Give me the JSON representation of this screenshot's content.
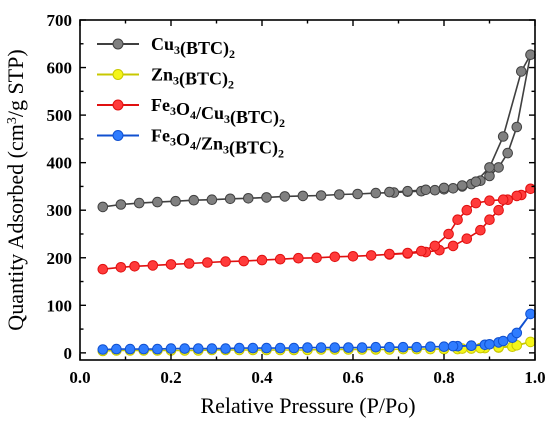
{
  "chart_data": {
    "type": "scatter",
    "xlabel": "Relative Pressure (P/Po)",
    "ylabel_main": "Quantity Adsorbed (cm",
    "ylabel_sup": "3",
    "ylabel_tail": "/g STP)",
    "xlim": [
      0.0,
      1.0
    ],
    "ylim": [
      -15,
      700
    ],
    "xticks": [
      "0.0",
      "0.2",
      "0.4",
      "0.6",
      "0.8",
      "1.0"
    ],
    "yticks": [
      "0",
      "100",
      "200",
      "300",
      "400",
      "500",
      "600",
      "700"
    ],
    "legend_position": "top-left",
    "series": [
      {
        "name": "Cu3(BTC)2",
        "legend_parts": [
          [
            "Cu",
            ""
          ],
          [
            "3",
            "sub"
          ],
          [
            "(BTC)",
            ""
          ],
          [
            "2",
            "sub"
          ]
        ],
        "color": "#404040",
        "fill": "#808080",
        "adsorption": [
          [
            0.05,
            307
          ],
          [
            0.09,
            312
          ],
          [
            0.13,
            315
          ],
          [
            0.17,
            317
          ],
          [
            0.21,
            319
          ],
          [
            0.25,
            321
          ],
          [
            0.29,
            322
          ],
          [
            0.33,
            324
          ],
          [
            0.37,
            325
          ],
          [
            0.41,
            327
          ],
          [
            0.45,
            329
          ],
          [
            0.49,
            330
          ],
          [
            0.53,
            331
          ],
          [
            0.57,
            333
          ],
          [
            0.61,
            334
          ],
          [
            0.65,
            336
          ],
          [
            0.69,
            337
          ],
          [
            0.72,
            339
          ],
          [
            0.75,
            340
          ],
          [
            0.78,
            342
          ],
          [
            0.8,
            344
          ],
          [
            0.82,
            346
          ],
          [
            0.84,
            350
          ],
          [
            0.86,
            355
          ],
          [
            0.88,
            362
          ],
          [
            0.9,
            372
          ],
          [
            0.92,
            390
          ],
          [
            0.94,
            420
          ],
          [
            0.96,
            475
          ],
          [
            0.99,
            627
          ]
        ],
        "desorption": [
          [
            0.99,
            627
          ],
          [
            0.97,
            592
          ],
          [
            0.93,
            455
          ],
          [
            0.9,
            390
          ],
          [
            0.87,
            360
          ],
          [
            0.84,
            352
          ],
          [
            0.8,
            347
          ],
          [
            0.76,
            343
          ],
          [
            0.72,
            340
          ],
          [
            0.68,
            338
          ]
        ]
      },
      {
        "name": "Zn3(BTC)2",
        "legend_parts": [
          [
            "Zn",
            ""
          ],
          [
            "3",
            "sub"
          ],
          [
            "(BTC)",
            ""
          ],
          [
            "2",
            "sub"
          ]
        ],
        "color": "#c8c800",
        "fill": "#f5f51a",
        "adsorption": [
          [
            0.05,
            4
          ],
          [
            0.08,
            5
          ],
          [
            0.11,
            5
          ],
          [
            0.14,
            5
          ],
          [
            0.17,
            5
          ],
          [
            0.2,
            5
          ],
          [
            0.23,
            5
          ],
          [
            0.26,
            5
          ],
          [
            0.29,
            6
          ],
          [
            0.32,
            6
          ],
          [
            0.35,
            6
          ],
          [
            0.38,
            6
          ],
          [
            0.41,
            6
          ],
          [
            0.44,
            6
          ],
          [
            0.47,
            6
          ],
          [
            0.5,
            6
          ],
          [
            0.53,
            7
          ],
          [
            0.56,
            7
          ],
          [
            0.59,
            7
          ],
          [
            0.62,
            7
          ],
          [
            0.65,
            7
          ],
          [
            0.68,
            7
          ],
          [
            0.71,
            8
          ],
          [
            0.74,
            8
          ],
          [
            0.77,
            8
          ],
          [
            0.8,
            8
          ],
          [
            0.83,
            8
          ],
          [
            0.86,
            9
          ],
          [
            0.89,
            10
          ],
          [
            0.92,
            11
          ],
          [
            0.95,
            13
          ],
          [
            0.99,
            23
          ]
        ],
        "desorption": [
          [
            0.99,
            23
          ],
          [
            0.96,
            16
          ],
          [
            0.92,
            12
          ],
          [
            0.88,
            10
          ],
          [
            0.84,
            9
          ],
          [
            0.8,
            8
          ]
        ]
      },
      {
        "name": "Fe3O4/Cu3(BTC)2",
        "legend_parts": [
          [
            "Fe",
            ""
          ],
          [
            "3",
            "sub"
          ],
          [
            "O",
            ""
          ],
          [
            "4",
            "sub"
          ],
          [
            "/Cu",
            ""
          ],
          [
            "3",
            "sub"
          ],
          [
            "(BTC)",
            ""
          ],
          [
            "2",
            "sub"
          ]
        ],
        "color": "#e01010",
        "fill": "#ff3b3b",
        "adsorption": [
          [
            0.05,
            176
          ],
          [
            0.09,
            180
          ],
          [
            0.12,
            182
          ],
          [
            0.16,
            184
          ],
          [
            0.2,
            186
          ],
          [
            0.24,
            188
          ],
          [
            0.28,
            190
          ],
          [
            0.32,
            192
          ],
          [
            0.36,
            193
          ],
          [
            0.4,
            195
          ],
          [
            0.44,
            197
          ],
          [
            0.48,
            199
          ],
          [
            0.52,
            200
          ],
          [
            0.56,
            202
          ],
          [
            0.6,
            203
          ],
          [
            0.64,
            205
          ],
          [
            0.68,
            207
          ],
          [
            0.72,
            209
          ],
          [
            0.76,
            212
          ],
          [
            0.79,
            216
          ],
          [
            0.82,
            225
          ],
          [
            0.85,
            240
          ],
          [
            0.88,
            258
          ],
          [
            0.9,
            280
          ],
          [
            0.92,
            300
          ],
          [
            0.94,
            322
          ],
          [
            0.97,
            332
          ],
          [
            0.99,
            345
          ]
        ],
        "desorption": [
          [
            0.99,
            345
          ],
          [
            0.96,
            330
          ],
          [
            0.93,
            322
          ],
          [
            0.9,
            320
          ],
          [
            0.87,
            315
          ],
          [
            0.85,
            300
          ],
          [
            0.83,
            280
          ],
          [
            0.81,
            250
          ],
          [
            0.78,
            225
          ],
          [
            0.75,
            214
          ],
          [
            0.72,
            210
          ],
          [
            0.68,
            208
          ]
        ]
      },
      {
        "name": "Fe3O4/Zn3(BTC)2",
        "legend_parts": [
          [
            "Fe",
            ""
          ],
          [
            "3",
            "sub"
          ],
          [
            "O",
            ""
          ],
          [
            "4",
            "sub"
          ],
          [
            "/Zn",
            ""
          ],
          [
            "3",
            "sub"
          ],
          [
            "(BTC)",
            ""
          ],
          [
            "2",
            "sub"
          ]
        ],
        "color": "#1050d0",
        "fill": "#2f7cff",
        "adsorption": [
          [
            0.05,
            7
          ],
          [
            0.08,
            8
          ],
          [
            0.11,
            8
          ],
          [
            0.14,
            8
          ],
          [
            0.17,
            8
          ],
          [
            0.2,
            9
          ],
          [
            0.23,
            9
          ],
          [
            0.26,
            9
          ],
          [
            0.29,
            9
          ],
          [
            0.32,
            9
          ],
          [
            0.35,
            10
          ],
          [
            0.38,
            10
          ],
          [
            0.41,
            10
          ],
          [
            0.44,
            10
          ],
          [
            0.47,
            10
          ],
          [
            0.5,
            11
          ],
          [
            0.53,
            11
          ],
          [
            0.56,
            11
          ],
          [
            0.59,
            11
          ],
          [
            0.62,
            11
          ],
          [
            0.65,
            12
          ],
          [
            0.68,
            12
          ],
          [
            0.71,
            12
          ],
          [
            0.74,
            12
          ],
          [
            0.77,
            13
          ],
          [
            0.8,
            13
          ],
          [
            0.83,
            14
          ],
          [
            0.86,
            15
          ],
          [
            0.89,
            17
          ],
          [
            0.92,
            22
          ],
          [
            0.95,
            32
          ],
          [
            0.99,
            82
          ]
        ],
        "desorption": [
          [
            0.99,
            82
          ],
          [
            0.96,
            42
          ],
          [
            0.93,
            25
          ],
          [
            0.9,
            18
          ],
          [
            0.86,
            15
          ],
          [
            0.82,
            14
          ]
        ]
      }
    ]
  }
}
